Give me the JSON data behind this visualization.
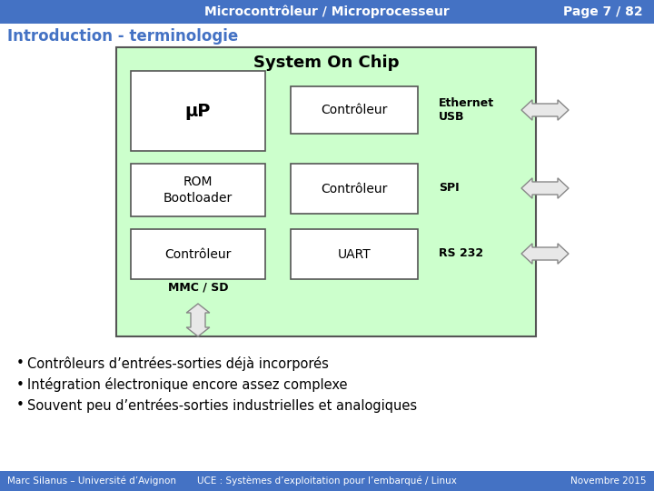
{
  "header_bg": "#4472c4",
  "header_text": "Microcontrôleur / Microprocesseur",
  "header_page": "Page 7 / 82",
  "header_text_color": "#ffffff",
  "slide_bg": "#ffffff",
  "title_text": "Introduction - terminologie",
  "title_color": "#4472c4",
  "soc_bg": "#ccffcc",
  "soc_border": "#555555",
  "soc_title": "System On Chip",
  "box_bg": "#ffffff",
  "box_border": "#555555",
  "boxes_left": [
    {
      "label": "μP",
      "bold": true,
      "fontsize": 14
    },
    {
      "label": "ROM\nBootloader",
      "bold": false,
      "fontsize": 10
    },
    {
      "label": "Contrôleur",
      "bold": false,
      "fontsize": 10
    }
  ],
  "boxes_right": [
    {
      "label": "Contrôleur",
      "bold": false,
      "fontsize": 10
    },
    {
      "label": "Contrôleur",
      "bold": false,
      "fontsize": 10
    },
    {
      "label": "UART",
      "bold": false,
      "fontsize": 10
    }
  ],
  "labels_outside": [
    "Ethernet\nUSB",
    "SPI",
    "RS 232"
  ],
  "label_mmc": "MMC / SD",
  "bullets": [
    "Contrôleurs d’entrées-sorties déjà incorporés",
    "Intégration électronique encore assez complexe",
    "Souvent peu d’entrées-sorties industrielles et analogiques"
  ],
  "footer_bg": "#4472c4",
  "footer_left": "Marc Silanus – Université d’Avignon",
  "footer_mid": "UCE : Systèmes d’exploitation pour l’embarqué / Linux",
  "footer_right": "Novembre 2015",
  "footer_text_color": "#ffffff",
  "arrow_fill": "#e8e8e8",
  "arrow_edge": "#888888"
}
